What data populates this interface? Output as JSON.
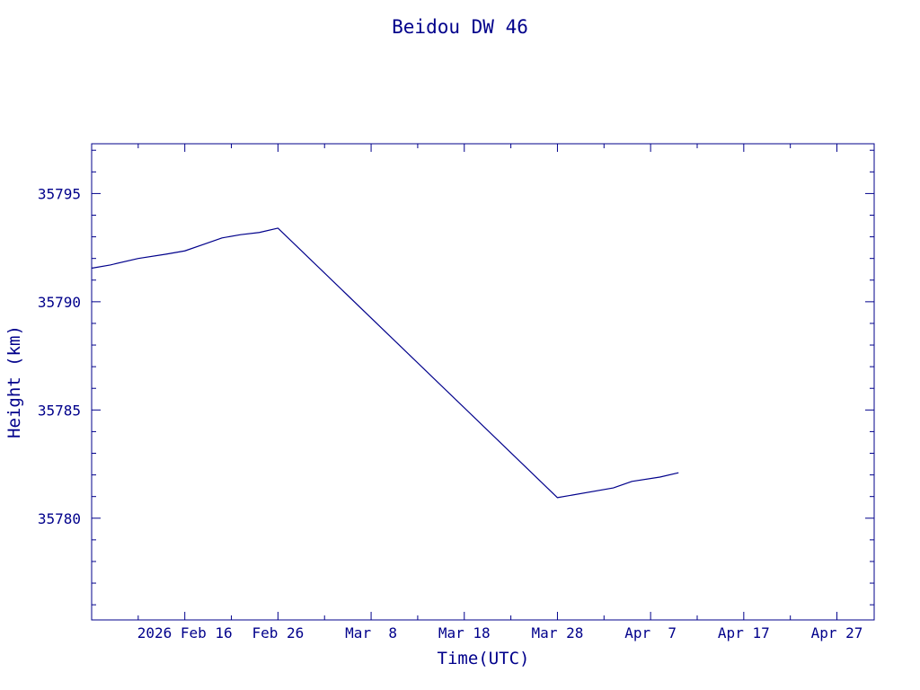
{
  "colors": {
    "ink": "#00008b",
    "background": "#ffffff"
  },
  "chart_data": {
    "type": "line",
    "title": "Beidou DW 46",
    "xlabel": "Time(UTC)",
    "ylabel": "Height (km)",
    "xlim": [
      "2026-02-06",
      "2026-05-01"
    ],
    "ylim": [
      35775.3,
      35797.3
    ],
    "grid": false,
    "legend": "none",
    "x_ticks": [
      {
        "date": "2026-02-16",
        "label": "2026 Feb 16"
      },
      {
        "date": "2026-02-26",
        "label": "Feb 26"
      },
      {
        "date": "2026-03-08",
        "label": "Mar  8"
      },
      {
        "date": "2026-03-18",
        "label": "Mar 18"
      },
      {
        "date": "2026-03-28",
        "label": "Mar 28"
      },
      {
        "date": "2026-04-07",
        "label": "Apr  7"
      },
      {
        "date": "2026-04-17",
        "label": "Apr 17"
      },
      {
        "date": "2026-04-27",
        "label": "Apr 27"
      }
    ],
    "x_minor_tick_dates": [
      "2026-02-11",
      "2026-02-21",
      "2026-03-03",
      "2026-03-13",
      "2026-03-23",
      "2026-04-02",
      "2026-04-12",
      "2026-04-22"
    ],
    "y_ticks": [
      {
        "value": 35780,
        "label": "35780"
      },
      {
        "value": 35785,
        "label": "35785"
      },
      {
        "value": 35790,
        "label": "35790"
      },
      {
        "value": 35795,
        "label": "35795"
      }
    ],
    "y_minor_step": 1,
    "series": [
      {
        "points": [
          [
            "2026-02-06",
            35791.55
          ],
          [
            "2026-02-08",
            35791.7
          ],
          [
            "2026-02-11",
            35792.0
          ],
          [
            "2026-02-14",
            35792.2
          ],
          [
            "2026-02-16",
            35792.35
          ],
          [
            "2026-02-18",
            35792.65
          ],
          [
            "2026-02-20",
            35792.95
          ],
          [
            "2026-02-22",
            35793.1
          ],
          [
            "2026-02-24",
            35793.2
          ],
          [
            "2026-02-26",
            35793.4
          ],
          [
            "2026-03-28",
            35780.95
          ],
          [
            "2026-04-03",
            35781.4
          ],
          [
            "2026-04-05",
            35781.7
          ],
          [
            "2026-04-08",
            35781.9
          ],
          [
            "2026-04-10",
            35782.1
          ]
        ]
      }
    ]
  }
}
